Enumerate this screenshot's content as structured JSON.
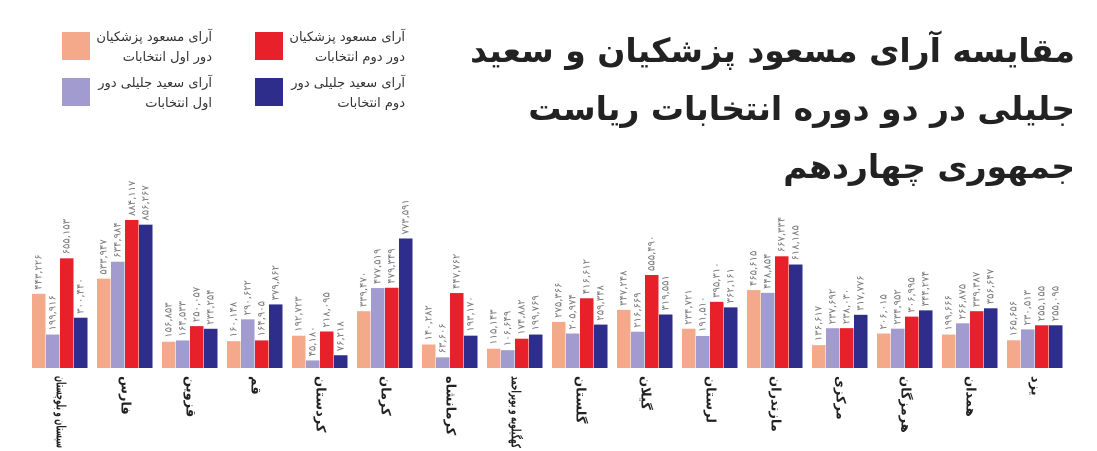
{
  "chart_data": {
    "type": "bar",
    "title": "مقایسه آرای مسعود پزشکیان و سعید جلیلی در دو دوره انتخابات ریاست جمهوری چهاردهم",
    "categories": [
      "سیستان و بلوچستان",
      "فارس",
      "قزوین",
      "قم",
      "کردستان",
      "کرمان",
      "کرمانشاه",
      "کهگیلویه و بویراحمد",
      "گلستان",
      "گیلان",
      "لرستان",
      "مازندران",
      "مرکزی",
      "هرمزگان",
      "همدان",
      "یزد"
    ],
    "series": [
      {
        "name": "آرای مسعود پزشکیان دور اول انتخابات",
        "color": "#f4a98a",
        "values": [
          443226,
          533947,
          156853,
          160148,
          192723,
          339470,
          140282,
          115143,
          275366,
          347248,
          234721,
          465615,
          136617,
          206015,
          199666,
          165656
        ],
        "value_labels": [
          "۴۴۳,۲۲۶",
          "۵۳۳,۹۴۷",
          "۱۵۶,۸۵۳",
          "۱۶۰,۱۴۸",
          "۱۹۲,۷۲۳",
          "۳۳۹,۴۷۰",
          "۱۴۰,۲۸۲",
          "۱۱۵,۱۴۳",
          "۲۷۵,۳۶۶",
          "۳۴۷,۲۴۸",
          "۲۳۴,۷۲۱",
          "۴۶۵,۶۱۵",
          "۱۳۶,۶۱۷",
          "۲۰۶,۰۱۵",
          "۱۹۹,۶۶۶",
          "۱۶۵,۶۵۶"
        ]
      },
      {
        "name": "آرای سعید جلیلی دور اول انتخابات",
        "color": "#a29bd0",
        "values": [
          199916,
          634984,
          164533,
          290622,
          45180,
          477519,
          63606,
          106649,
          205974,
          216669,
          191510,
          448854,
          237692,
          234952,
          266875,
          230513
        ],
        "value_labels": [
          "۱۹۹,۹۱۶",
          "۶۳۴,۹۸۴",
          "۱۶۴,۵۳۳",
          "۲۹۰,۶۲۲",
          "۴۵,۱۸۰",
          "۴۷۷,۵۱۹",
          "۶۳,۶۰۶",
          "۱۰۶,۶۴۹",
          "۲۰۵,۹۷۴",
          "۲۱۶,۶۶۹",
          "۱۹۱,۵۱۰",
          "۴۴۸,۸۵۴",
          "۲۳۷,۶۹۲",
          "۲۳۴,۹۵۲",
          "۲۶۶,۸۷۵",
          "۲۳۰,۵۱۳"
        ]
      },
      {
        "name": "آرای مسعود پزشکیان دور دوم انتخابات",
        "color": "#e8202a",
        "values": [
          655153,
          884117,
          250057,
          164905,
          218095,
          479349,
          447762,
          174882,
          416612,
          555490,
          395310,
          667334,
          238030,
          306995,
          339387,
          255155
        ],
        "value_labels": [
          "۶۵۵,۱۵۳",
          "۸۸۴,۱۱۷",
          "۲۵۰,۰۵۷",
          "۱۶۴,۹۰۵",
          "۲۱۸,۰۹۵",
          "۴۷۹,۳۴۹",
          "۴۴۷,۷۶۲",
          "۱۷۴,۸۸۲",
          "۴۱۶,۶۱۲",
          "۵۵۵,۴۹۰",
          "۳۹۵,۳۱۰",
          "۶۶۷,۳۳۴",
          "۲۳۸,۰۳۰",
          "۳۰۶,۹۹۵",
          "۳۳۹,۳۸۷",
          "۲۵۵,۱۵۵"
        ]
      },
      {
        "name": "آرای سعید جلیلی دور دوم انتخابات",
        "color": "#2e2d8c",
        "values": [
          300440,
          856267,
          234254,
          379862,
          76218,
          773591,
          193170,
          199769,
          259348,
          319551,
          362161,
          618185,
          317776,
          344274,
          356647,
          255095
        ],
        "value_labels": [
          "۳۰۰,۴۴۰",
          "۸۵۶,۲۶۷",
          "۲۳۴,۲۵۴",
          "۳۷۹,۸۶۲",
          "۷۶,۲۱۸",
          "۷۷۳,۵۹۱",
          "۱۹۳,۱۷۰",
          "۱۹۹,۷۶۹",
          "۲۵۹,۳۴۸",
          "۳۱۹,۵۵۱",
          "۳۶۲,۱۶۱",
          "۶۱۸,۱۸۵",
          "۳۱۷,۷۷۶",
          "۳۴۴,۲۷۴",
          "۳۵۶,۶۴۷",
          "۲۵۵,۰۹۵"
        ]
      }
    ]
  }
}
